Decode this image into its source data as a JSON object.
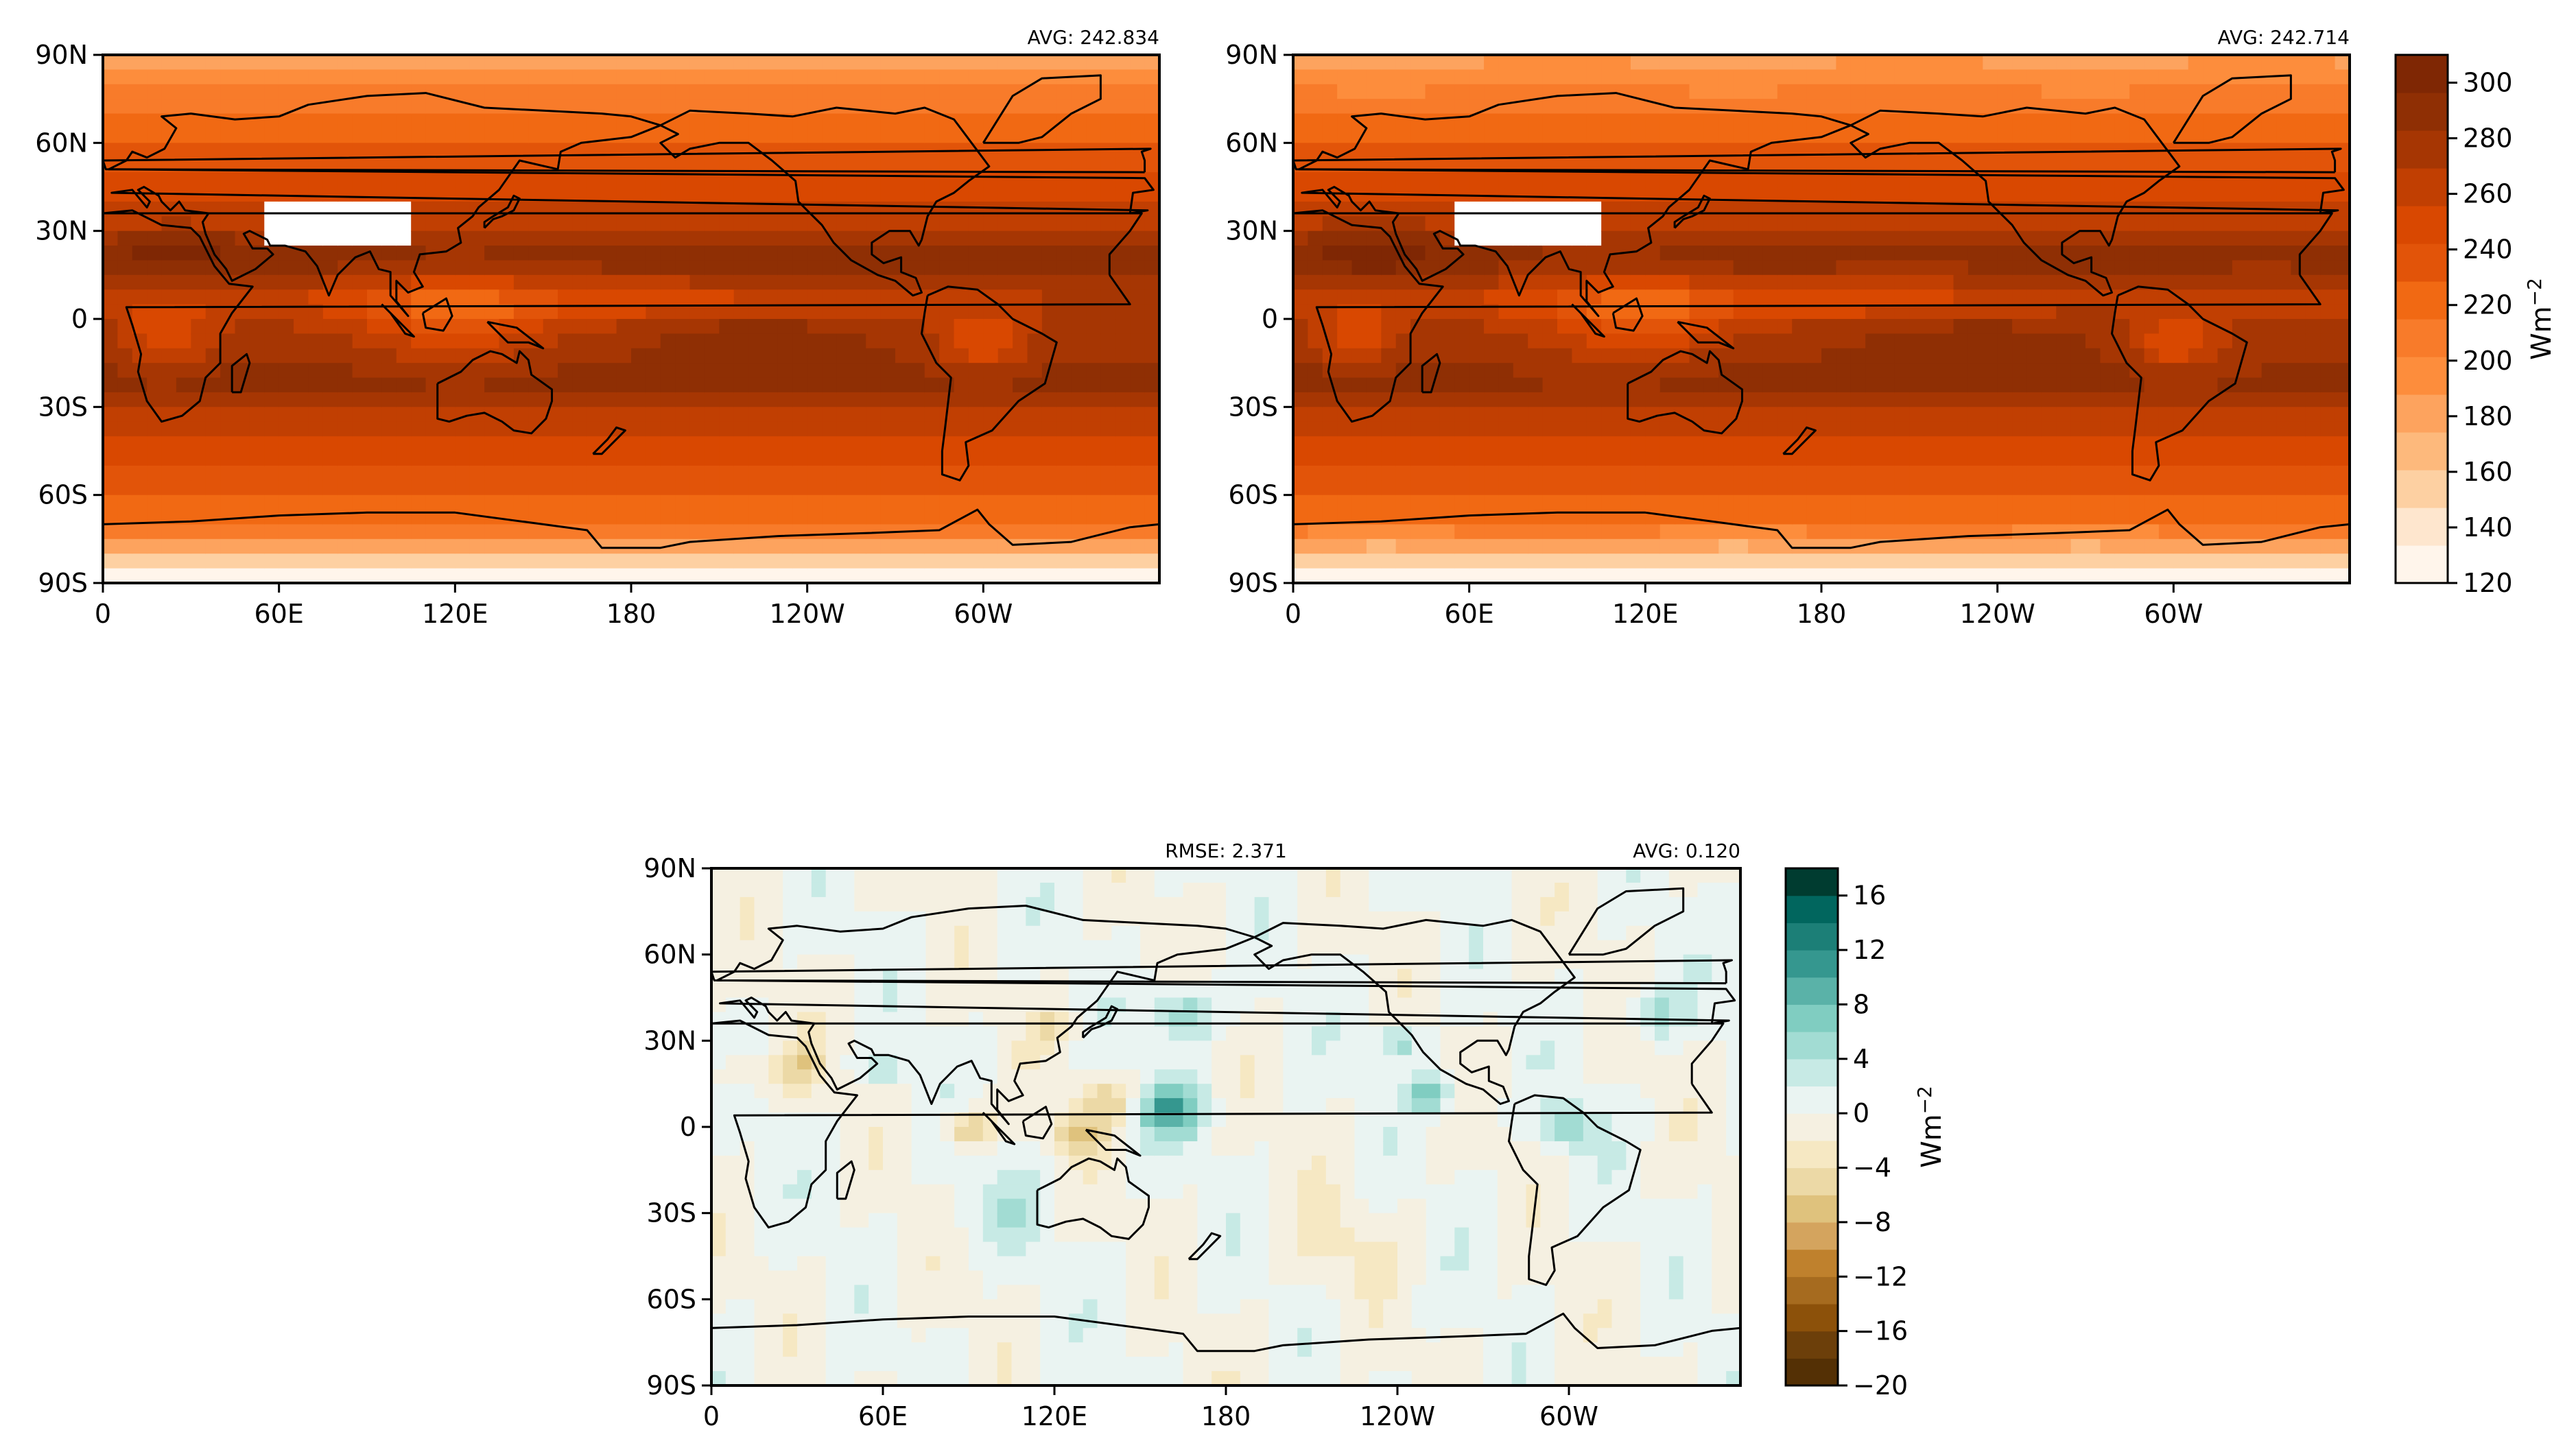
{
  "chart_data": [
    {
      "type": "heatmap",
      "id": "test",
      "stats": {
        "avg": "AVG: 242.834"
      },
      "x_ticks": [
        "0",
        "60E",
        "120E",
        "180",
        "120W",
        "60W"
      ],
      "y_ticks": [
        "90N",
        "60N",
        "30N",
        "0",
        "30S",
        "60S",
        "90S"
      ],
      "colormap": "Oranges",
      "shared_colorbar": "cbar_main",
      "approx_range": [
        120,
        310
      ],
      "masked_region": "high elevation (Tibetan Plateau) shown white"
    },
    {
      "type": "heatmap",
      "id": "reference",
      "stats": {
        "avg": "AVG: 242.714"
      },
      "x_ticks": [
        "0",
        "60E",
        "120E",
        "180",
        "120W",
        "60W"
      ],
      "y_ticks": [
        "90N",
        "60N",
        "30N",
        "0",
        "30S",
        "60S",
        "90S"
      ],
      "colormap": "Oranges",
      "shared_colorbar": "cbar_main",
      "approx_range": [
        120,
        310
      ],
      "masked_region": "high elevation (Tibetan Plateau) shown white"
    },
    {
      "type": "heatmap",
      "id": "difference",
      "stats": {
        "rmse": "RMSE: 2.371",
        "avg": "AVG: 0.120"
      },
      "x_ticks": [
        "0",
        "60E",
        "120E",
        "180",
        "120W",
        "60W"
      ],
      "y_ticks": [
        "90N",
        "60N",
        "30N",
        "0",
        "30S",
        "60S",
        "90S"
      ],
      "colormap": "BrBG",
      "shared_colorbar": "cbar_diff",
      "approx_range": [
        -20,
        18
      ]
    }
  ],
  "colorbars": {
    "cbar_main": {
      "min": 120,
      "max": 310,
      "ticks": [
        "300",
        "280",
        "260",
        "240",
        "220",
        "200",
        "180",
        "160",
        "140",
        "120"
      ],
      "tick_values": [
        300,
        280,
        260,
        240,
        220,
        200,
        180,
        160,
        140,
        120
      ],
      "units": "Wm",
      "units_sup": "−2",
      "colors": [
        "#fff5eb",
        "#fee6ce",
        "#fdd0a2",
        "#fdb97c",
        "#fda35e",
        "#fd8d3c",
        "#f87b2a",
        "#f16913",
        "#e25409",
        "#d94801",
        "#c13f02",
        "#a63603",
        "#8f2f04",
        "#7f2704"
      ]
    },
    "cbar_diff": {
      "min": -20,
      "max": 18,
      "ticks": [
        "16",
        "12",
        "8",
        "4",
        "0",
        "−4",
        "−8",
        "−12",
        "−16",
        "−20"
      ],
      "tick_values": [
        16,
        12,
        8,
        4,
        0,
        -4,
        -8,
        -12,
        -16,
        -20
      ],
      "units": "Wm",
      "units_sup": "−2",
      "colors": [
        "#543005",
        "#6c3f0a",
        "#8c510a",
        "#a66b1f",
        "#bf812d",
        "#d4a45e",
        "#dfc27d",
        "#ecd9a6",
        "#f6e8c3",
        "#f5f0e1",
        "#eaf4f2",
        "#c7eae5",
        "#a2dcd3",
        "#80cdc1",
        "#5ab2a8",
        "#35978f",
        "#1c7f77",
        "#01665e",
        "#003c30"
      ]
    }
  }
}
